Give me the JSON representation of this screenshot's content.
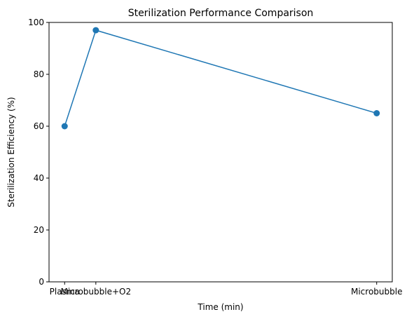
{
  "chart_data": {
    "type": "line",
    "title": "Sterilization Performance Comparison",
    "xlabel": "Time (min)",
    "ylabel": "Sterilization Efficiency (%)",
    "x": [
      0,
      1,
      10
    ],
    "x_tick_labels": [
      "Plasma",
      "Microbubble+O2",
      "Microbubble"
    ],
    "values": [
      60,
      97,
      65
    ],
    "xlim": [
      -0.5,
      10.5
    ],
    "ylim": [
      0,
      100
    ],
    "yticks": [
      0,
      20,
      40,
      60,
      80,
      100
    ],
    "grid": false,
    "line_color": "#1f77b4",
    "marker": "circle"
  }
}
